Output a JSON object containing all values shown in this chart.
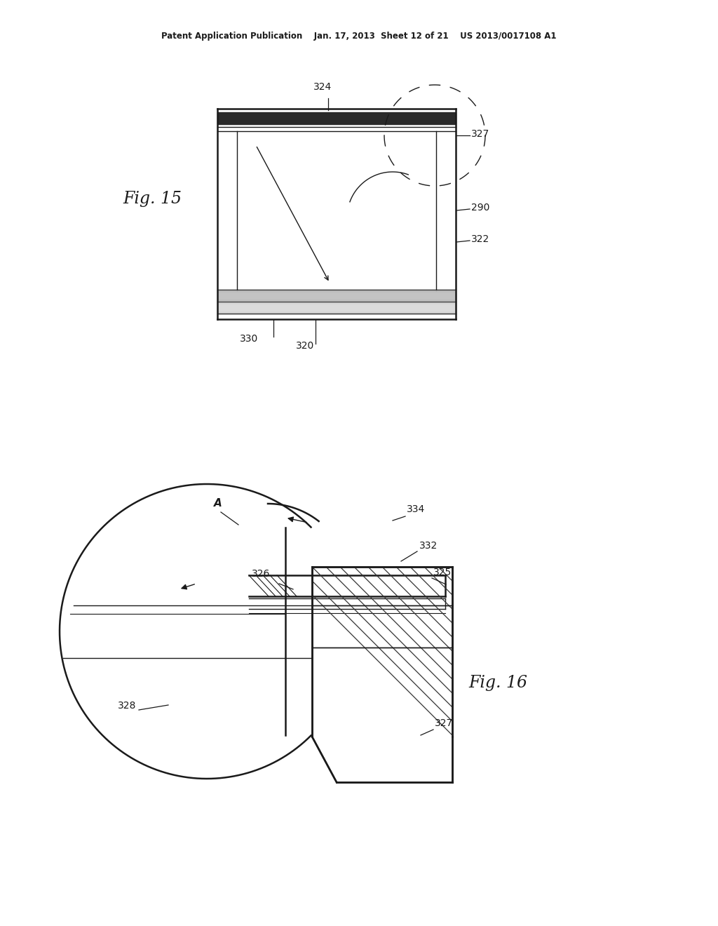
{
  "background_color": "#ffffff",
  "line_color": "#1a1a1a",
  "header_text": "Patent Application Publication    Jan. 17, 2013  Sheet 12 of 21    US 2013/0017108 A1",
  "fig15_label": "Fig. 15",
  "fig16_label": "Fig. 16"
}
